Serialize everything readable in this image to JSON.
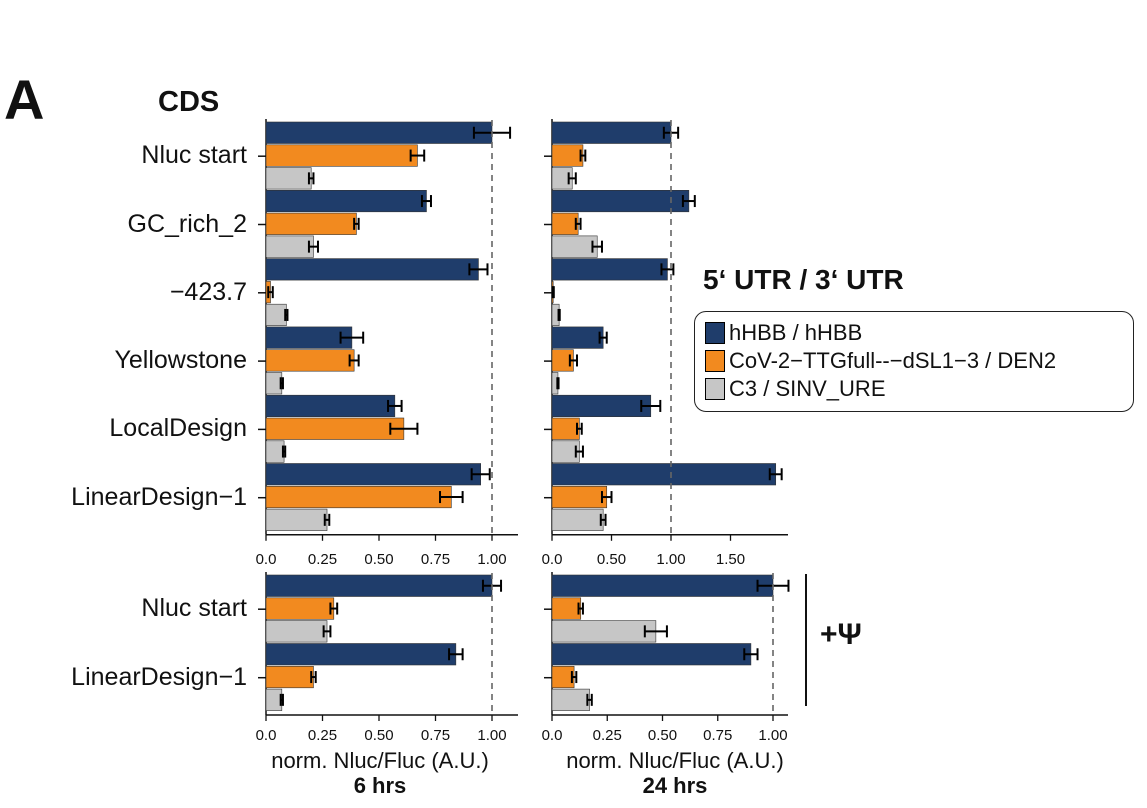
{
  "figure": {
    "panel_letter": "A",
    "cds_title": "CDS",
    "utr_title": "5‘ UTR / 3‘ UTR",
    "psi_label": "+Ψ",
    "time_6h": "6 hrs",
    "time_24h": "24 hrs",
    "xlabel": "norm. Nluc/Fluc (A.U.)"
  },
  "colors": {
    "hHBB": "#1f3d6b",
    "CoV2": "#f28a1f",
    "C3": "#c6c6c6"
  },
  "legend": [
    {
      "label": "hHBB / hHBB",
      "color": "#1f3d6b"
    },
    {
      "label": "CoV-2−TTGfull--−dSL1−3 / DEN2",
      "color": "#f28a1f"
    },
    {
      "label": "C3 / SINV_URE",
      "color": "#c6c6c6"
    }
  ],
  "chart_data": [
    {
      "type": "bar",
      "orientation": "horizontal",
      "panel": "top-6h",
      "categories": [
        "Nluc start",
        "GC_rich_2",
        "−423.7",
        "Yellowstone",
        "LocalDesign",
        "LinearDesign−1"
      ],
      "series": [
        {
          "name": "hHBB / hHBB",
          "values": [
            1.0,
            0.71,
            0.94,
            0.38,
            0.57,
            0.95
          ],
          "errors": [
            0.08,
            0.02,
            0.04,
            0.05,
            0.03,
            0.04
          ]
        },
        {
          "name": "CoV-2−TTGfull--−dSL1−3 / DEN2",
          "values": [
            0.67,
            0.4,
            0.02,
            0.39,
            0.61,
            0.82
          ],
          "errors": [
            0.03,
            0.01,
            0.01,
            0.02,
            0.06,
            0.05
          ]
        },
        {
          "name": "C3 / SINV_URE",
          "values": [
            0.2,
            0.21,
            0.09,
            0.07,
            0.08,
            0.27
          ],
          "errors": [
            0.01,
            0.02,
            0.005,
            0.005,
            0.005,
            0.01
          ]
        }
      ],
      "xlim": [
        0,
        1.05
      ],
      "xticks": [
        0.0,
        0.25,
        0.5,
        0.75,
        1.0
      ],
      "xtick_labels": [
        "0.0",
        "0.25",
        "0.50",
        "0.75",
        "1.00"
      ],
      "reference_line": 1.0
    },
    {
      "type": "bar",
      "orientation": "horizontal",
      "panel": "top-24h",
      "categories": [
        "Nluc start",
        "GC_rich_2",
        "−423.7",
        "Yellowstone",
        "LocalDesign",
        "LinearDesign−1"
      ],
      "series": [
        {
          "name": "hHBB / hHBB",
          "values": [
            1.0,
            1.15,
            0.97,
            0.43,
            0.83,
            1.88
          ],
          "errors": [
            0.06,
            0.05,
            0.05,
            0.03,
            0.08,
            0.05
          ]
        },
        {
          "name": "CoV-2−TTGfull--−dSL1−3 / DEN2",
          "values": [
            0.26,
            0.22,
            0.01,
            0.18,
            0.23,
            0.46
          ],
          "errors": [
            0.02,
            0.02,
            0.005,
            0.03,
            0.02,
            0.04
          ]
        },
        {
          "name": "C3 / SINV_URE",
          "values": [
            0.17,
            0.38,
            0.06,
            0.05,
            0.23,
            0.43
          ],
          "errors": [
            0.03,
            0.04,
            0.005,
            0.005,
            0.03,
            0.02
          ]
        }
      ],
      "xlim": [
        0,
        2.0
      ],
      "xticks": [
        0.0,
        0.5,
        1.0,
        1.5
      ],
      "xtick_labels": [
        "0.0",
        "0.50",
        "1.00",
        "1.50"
      ],
      "reference_line": 1.0
    },
    {
      "type": "bar",
      "orientation": "horizontal",
      "panel": "bottom-6h-psi",
      "categories": [
        "Nluc start",
        "LinearDesign−1"
      ],
      "series": [
        {
          "name": "hHBB / hHBB",
          "values": [
            1.0,
            0.84
          ],
          "errors": [
            0.04,
            0.03
          ]
        },
        {
          "name": "CoV-2−TTGfull--−dSL1−3 / DEN2",
          "values": [
            0.3,
            0.21
          ],
          "errors": [
            0.015,
            0.01
          ]
        },
        {
          "name": "C3 / SINV_URE",
          "values": [
            0.27,
            0.07
          ],
          "errors": [
            0.015,
            0.005
          ]
        }
      ],
      "xlim": [
        0,
        1.05
      ],
      "xticks": [
        0.0,
        0.25,
        0.5,
        0.75,
        1.0
      ],
      "xtick_labels": [
        "0.0",
        "0.25",
        "0.50",
        "0.75",
        "1.00"
      ],
      "reference_line": 1.0
    },
    {
      "type": "bar",
      "orientation": "horizontal",
      "panel": "bottom-24h-psi",
      "categories": [
        "Nluc start",
        "LinearDesign−1"
      ],
      "series": [
        {
          "name": "hHBB / hHBB",
          "values": [
            1.0,
            0.9
          ],
          "errors": [
            0.07,
            0.03
          ]
        },
        {
          "name": "CoV-2−TTGfull--−dSL1−3 / DEN2",
          "values": [
            0.13,
            0.1
          ],
          "errors": [
            0.01,
            0.01
          ]
        },
        {
          "name": "C3 / SINV_URE",
          "values": [
            0.47,
            0.17
          ],
          "errors": [
            0.05,
            0.01
          ]
        }
      ],
      "xlim": [
        0,
        1.05
      ],
      "xticks": [
        0.0,
        0.25,
        0.5,
        0.75,
        1.0
      ],
      "xtick_labels": [
        "0.0",
        "0.25",
        "0.50",
        "0.75",
        "1.00"
      ],
      "reference_line": 1.0
    }
  ]
}
